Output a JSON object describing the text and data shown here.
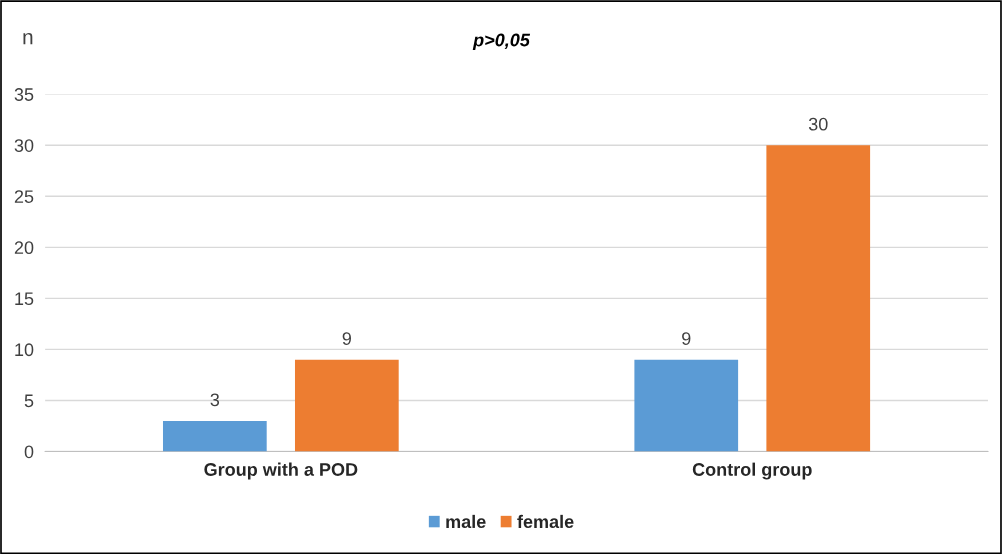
{
  "chart_data": {
    "type": "bar",
    "title": "p>0,05",
    "ylabel": "n",
    "categories": [
      "Group with a POD",
      "Control group"
    ],
    "series": [
      {
        "name": "male",
        "color": "#5b9bd5",
        "values": [
          3,
          9
        ]
      },
      {
        "name": "female",
        "color": "#ed7d31",
        "values": [
          9,
          30
        ]
      }
    ],
    "ylim": [
      0,
      35
    ],
    "yticks": [
      0,
      5,
      10,
      15,
      20,
      25,
      30,
      35
    ],
    "grid": "y",
    "legend": "bottom",
    "data_labels": true
  }
}
